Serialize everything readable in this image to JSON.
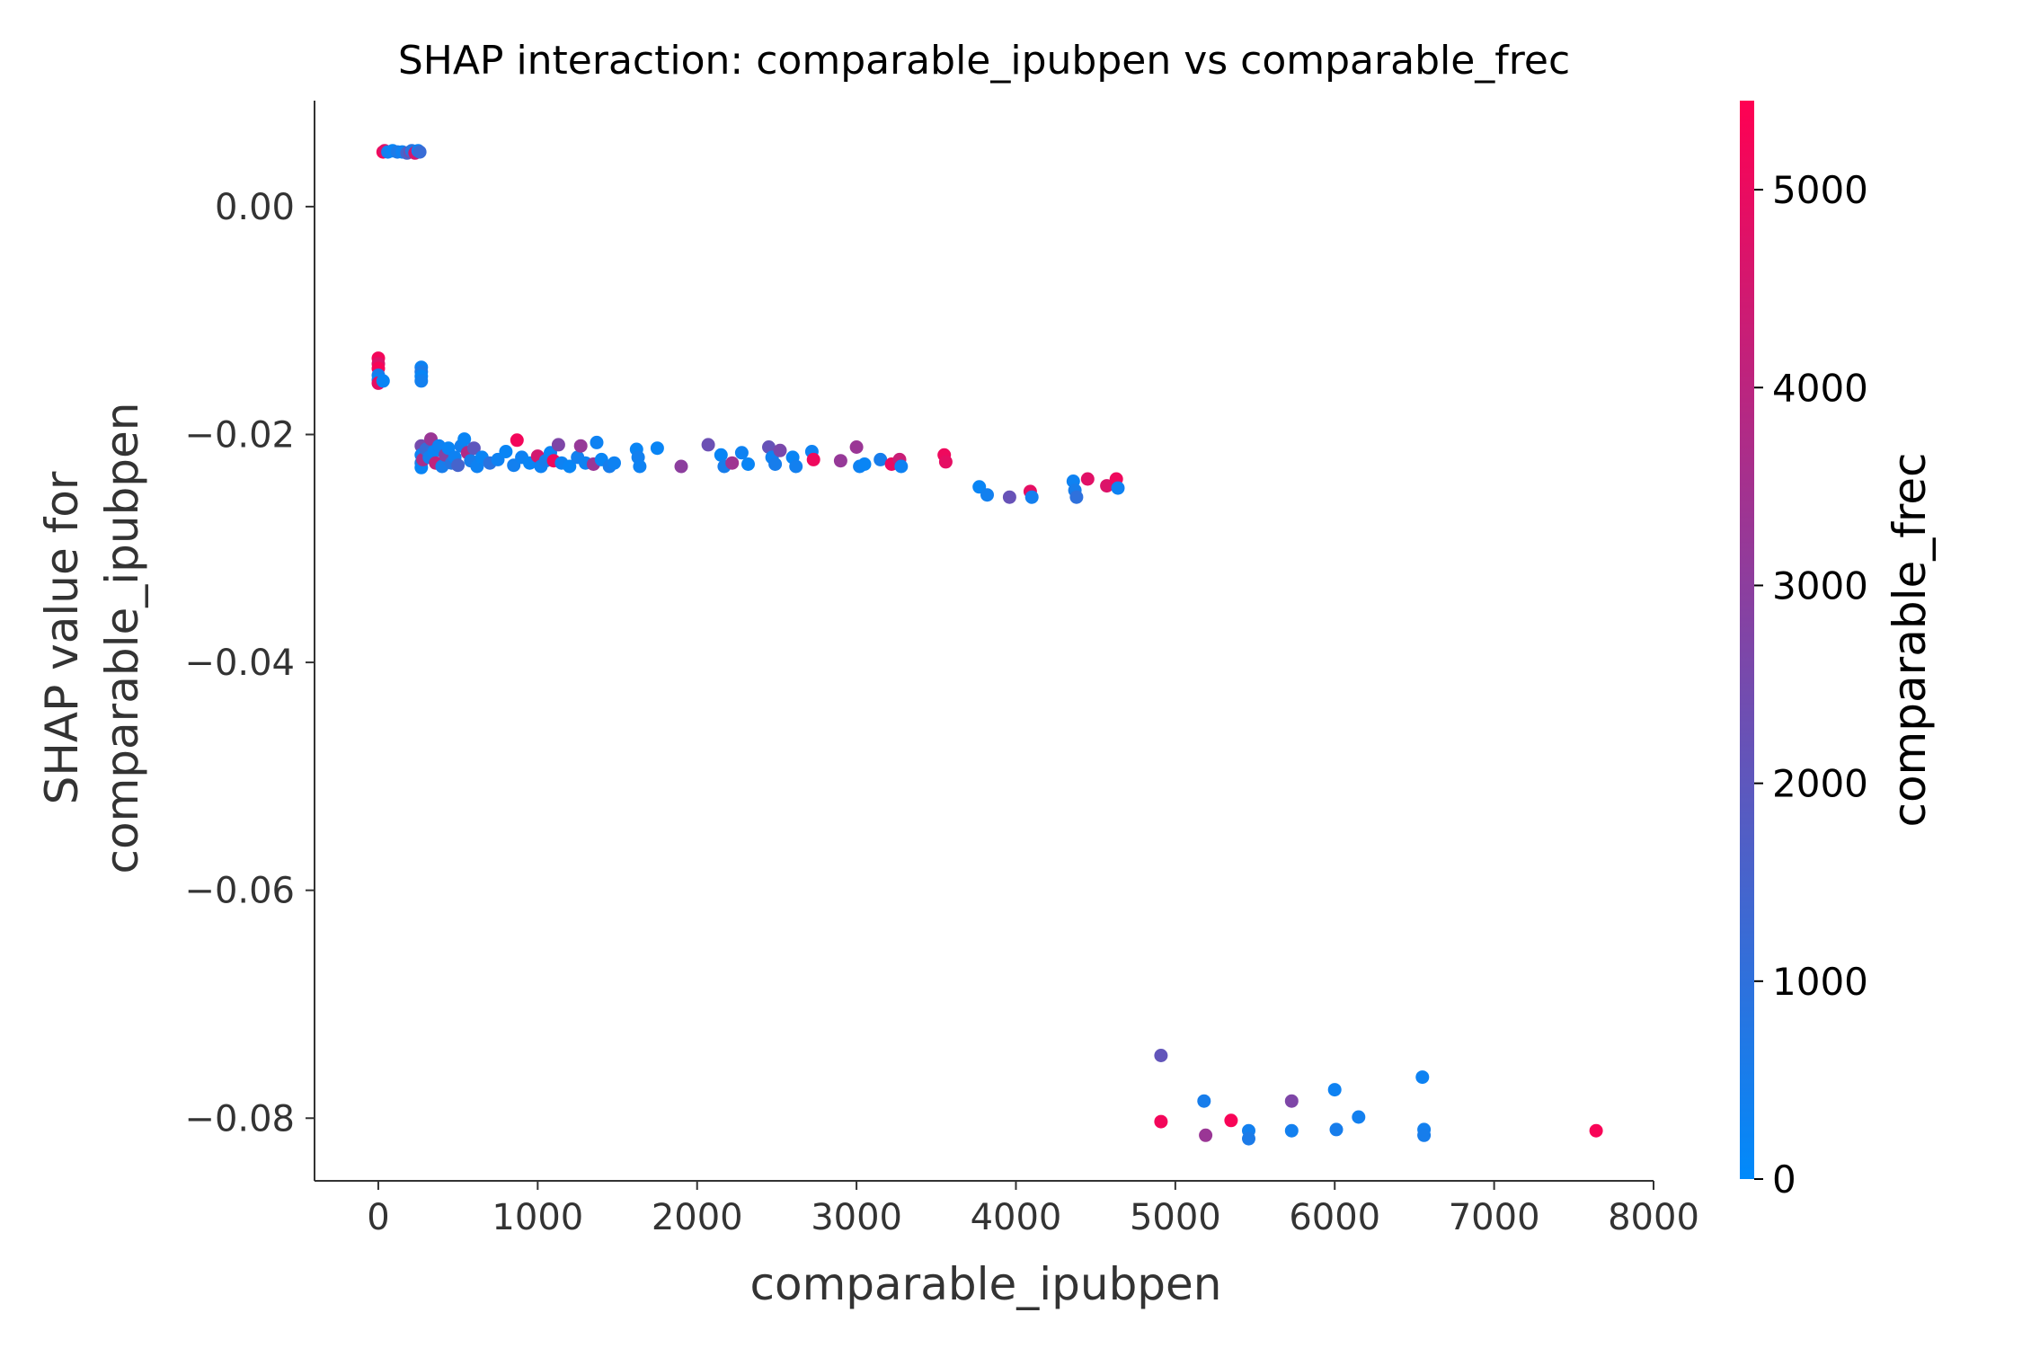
{
  "chart_data": {
    "type": "scatter",
    "title": "SHAP interaction: comparable_ipubpen vs comparable_frec",
    "xlabel": "comparable_ipubpen",
    "ylabel": [
      "SHAP value for",
      "comparable_ipubpen"
    ],
    "xlim": [
      -400,
      8000
    ],
    "ylim": [
      -0.0855,
      0.0093
    ],
    "xticks": [
      0,
      1000,
      2000,
      3000,
      4000,
      5000,
      6000,
      7000,
      8000
    ],
    "xtick_labels": [
      "0",
      "1000",
      "2000",
      "3000",
      "4000",
      "5000",
      "6000",
      "7000",
      "8000"
    ],
    "yticks": [
      0.0,
      -0.02,
      -0.04,
      -0.06,
      -0.08
    ],
    "ytick_labels": [
      "0.00",
      "−0.02",
      "−0.04",
      "−0.06",
      "−0.08"
    ],
    "colorbar": {
      "label": "comparable_frec",
      "range": [
        0,
        5450
      ],
      "ticks": [
        0,
        1000,
        2000,
        3000,
        4000,
        5000
      ],
      "tick_labels": [
        "0",
        "1000",
        "2000",
        "3000",
        "4000",
        "5000"
      ],
      "colors": [
        "#008afb",
        "#ff0052"
      ]
    },
    "grid": false,
    "points": [
      [
        30,
        0.0048,
        5200
      ],
      [
        40,
        0.0049,
        4800
      ],
      [
        60,
        0.0048,
        400
      ],
      [
        90,
        0.0049,
        200
      ],
      [
        120,
        0.0048,
        600
      ],
      [
        150,
        0.0048,
        300
      ],
      [
        180,
        0.0047,
        1500
      ],
      [
        200,
        0.0048,
        2200
      ],
      [
        210,
        0.0049,
        800
      ],
      [
        230,
        0.0047,
        4600
      ],
      [
        250,
        0.0049,
        300
      ],
      [
        260,
        0.0048,
        1200
      ],
      [
        0,
        -0.0133,
        5200
      ],
      [
        0,
        -0.0138,
        4700
      ],
      [
        0,
        -0.0142,
        5300
      ],
      [
        0,
        -0.0148,
        500
      ],
      [
        0,
        -0.0152,
        300
      ],
      [
        0,
        -0.0155,
        4900
      ],
      [
        30,
        -0.0153,
        200
      ],
      [
        270,
        -0.0141,
        300
      ],
      [
        270,
        -0.0145,
        600
      ],
      [
        270,
        -0.0149,
        200
      ],
      [
        270,
        -0.0153,
        400
      ],
      [
        270,
        -0.021,
        2500
      ],
      [
        270,
        -0.0218,
        300
      ],
      [
        270,
        -0.0225,
        600
      ],
      [
        270,
        -0.0229,
        200
      ],
      [
        280,
        -0.0222,
        3600
      ],
      [
        300,
        -0.0213,
        1200
      ],
      [
        320,
        -0.022,
        400
      ],
      [
        330,
        -0.0204,
        3300
      ],
      [
        350,
        -0.0215,
        200
      ],
      [
        360,
        -0.0225,
        4100
      ],
      [
        380,
        -0.021,
        300
      ],
      [
        400,
        -0.0228,
        500
      ],
      [
        420,
        -0.0218,
        2800
      ],
      [
        440,
        -0.0212,
        200
      ],
      [
        460,
        -0.0225,
        800
      ],
      [
        480,
        -0.022,
        300
      ],
      [
        500,
        -0.0227,
        1500
      ],
      [
        520,
        -0.021,
        400
      ],
      [
        540,
        -0.0204,
        200
      ],
      [
        560,
        -0.0216,
        3800
      ],
      [
        580,
        -0.0223,
        500
      ],
      [
        600,
        -0.0212,
        2000
      ],
      [
        620,
        -0.0228,
        300
      ],
      [
        650,
        -0.022,
        200
      ],
      [
        700,
        -0.0225,
        900
      ],
      [
        750,
        -0.0222,
        300
      ],
      [
        800,
        -0.0215,
        200
      ],
      [
        850,
        -0.0227,
        400
      ],
      [
        870,
        -0.0205,
        5200
      ],
      [
        900,
        -0.022,
        300
      ],
      [
        950,
        -0.0225,
        200
      ],
      [
        1000,
        -0.0219,
        4500
      ],
      [
        1020,
        -0.0228,
        300
      ],
      [
        1050,
        -0.0223,
        500
      ],
      [
        1080,
        -0.0216,
        200
      ],
      [
        1100,
        -0.0223,
        5100
      ],
      [
        1130,
        -0.0209,
        2700
      ],
      [
        1150,
        -0.0225,
        300
      ],
      [
        1200,
        -0.0228,
        200
      ],
      [
        1250,
        -0.022,
        400
      ],
      [
        1270,
        -0.021,
        3200
      ],
      [
        1300,
        -0.0225,
        300
      ],
      [
        1350,
        -0.0226,
        3300
      ],
      [
        1370,
        -0.0207,
        300
      ],
      [
        1400,
        -0.0222,
        200
      ],
      [
        1450,
        -0.0228,
        500
      ],
      [
        1480,
        -0.0225,
        300
      ],
      [
        1620,
        -0.0213,
        200
      ],
      [
        1630,
        -0.022,
        400
      ],
      [
        1640,
        -0.0228,
        300
      ],
      [
        1750,
        -0.0212,
        200
      ],
      [
        1900,
        -0.0228,
        3000
      ],
      [
        2070,
        -0.0209,
        2300
      ],
      [
        2150,
        -0.0218,
        200
      ],
      [
        2170,
        -0.0228,
        500
      ],
      [
        2220,
        -0.0225,
        3400
      ],
      [
        2280,
        -0.0216,
        300
      ],
      [
        2320,
        -0.0226,
        200
      ],
      [
        2450,
        -0.0211,
        2200
      ],
      [
        2470,
        -0.022,
        300
      ],
      [
        2490,
        -0.0226,
        500
      ],
      [
        2520,
        -0.0214,
        2600
      ],
      [
        2600,
        -0.022,
        200
      ],
      [
        2620,
        -0.0228,
        400
      ],
      [
        2720,
        -0.0215,
        300
      ],
      [
        2730,
        -0.0222,
        5100
      ],
      [
        2900,
        -0.0223,
        3200
      ],
      [
        3000,
        -0.0211,
        3300
      ],
      [
        3020,
        -0.0228,
        300
      ],
      [
        3050,
        -0.0226,
        200
      ],
      [
        3150,
        -0.0222,
        500
      ],
      [
        3220,
        -0.0226,
        5000
      ],
      [
        3270,
        -0.0222,
        4300
      ],
      [
        3280,
        -0.0228,
        300
      ],
      [
        3550,
        -0.0218,
        5100
      ],
      [
        3560,
        -0.0224,
        4900
      ],
      [
        3770,
        -0.0246,
        200
      ],
      [
        3820,
        -0.0253,
        400
      ],
      [
        3960,
        -0.0255,
        2200
      ],
      [
        4090,
        -0.025,
        4900
      ],
      [
        4100,
        -0.0255,
        400
      ],
      [
        4360,
        -0.0241,
        300
      ],
      [
        4370,
        -0.0249,
        500
      ],
      [
        4380,
        -0.0255,
        1000
      ],
      [
        4450,
        -0.0239,
        4800
      ],
      [
        4570,
        -0.0245,
        4700
      ],
      [
        4630,
        -0.0239,
        5100
      ],
      [
        4640,
        -0.0247,
        300
      ],
      [
        4910,
        -0.0745,
        2100
      ],
      [
        4910,
        -0.0803,
        5200
      ],
      [
        5180,
        -0.0785,
        500
      ],
      [
        5190,
        -0.0815,
        3300
      ],
      [
        5350,
        -0.0802,
        5300
      ],
      [
        5460,
        -0.0811,
        400
      ],
      [
        5460,
        -0.0818,
        600
      ],
      [
        5730,
        -0.0785,
        2700
      ],
      [
        5730,
        -0.0811,
        400
      ],
      [
        6000,
        -0.0775,
        300
      ],
      [
        6010,
        -0.081,
        500
      ],
      [
        6150,
        -0.0799,
        400
      ],
      [
        6550,
        -0.0764,
        300
      ],
      [
        6560,
        -0.081,
        400
      ],
      [
        6560,
        -0.0815,
        500
      ],
      [
        7640,
        -0.0811,
        5300
      ]
    ]
  }
}
